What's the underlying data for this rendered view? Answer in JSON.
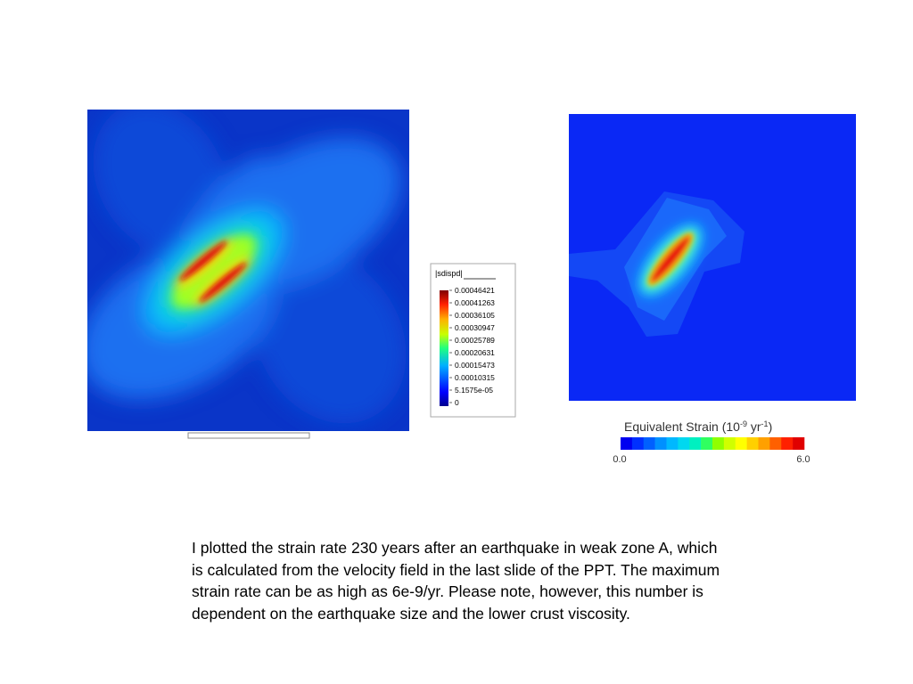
{
  "left_legend": {
    "title": "|sdispd|",
    "labels": [
      "0.00046421",
      "0.00041263",
      "0.00036105",
      "0.00030947",
      "0.00025789",
      "0.00020631",
      "0.00015473",
      "0.00010315",
      "5.1575e-05",
      "0"
    ]
  },
  "right_legend": {
    "title_parts": [
      "Equivalent Strain (10",
      "-9",
      " yr",
      "-1",
      ")"
    ],
    "min_label": "0.0",
    "max_label": "6.0"
  },
  "caption": {
    "lines": [
      "I plotted the strain rate 230 years after an earthquake in weak zone A, which",
      "is calculated from the velocity field in the last slide of the PPT. The maximum",
      "strain rate can be as high as 6e-9/yr. Please note, however, this number is",
      "dependent on the earthquake size and the lower crust viscosity."
    ]
  }
}
